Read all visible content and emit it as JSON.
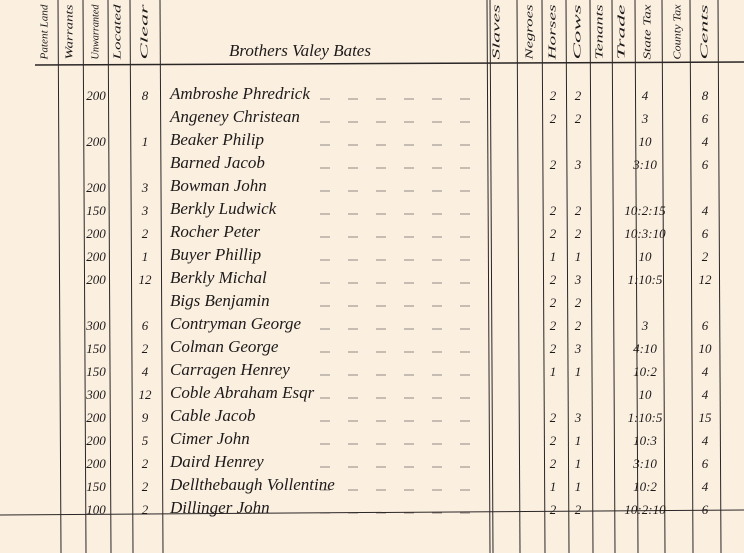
{
  "title": "Brothers Valey Bates",
  "columns": [
    "Patent Land",
    "Warrants",
    "Unwarranted",
    "Located",
    "Clear",
    "Slaves",
    "Negroes",
    "Horses",
    "Cows",
    "Tenants",
    "Trade",
    "State Tax",
    "County Tax",
    "Cents"
  ],
  "rows": [
    [
      "200",
      "8",
      "Ambroshe Phredrick",
      "2",
      "2",
      "4",
      "8"
    ],
    [
      "",
      "",
      "Angeney Christean",
      "2",
      "2",
      "3",
      "6"
    ],
    [
      "200",
      "1",
      "Beaker Philip",
      "",
      "",
      "10",
      "4"
    ],
    [
      "",
      "",
      "Barned Jacob",
      "2",
      "3",
      "3:10",
      "6"
    ],
    [
      "200",
      "3",
      "Bowman John",
      "",
      "",
      "",
      ""
    ],
    [
      "150",
      "3",
      "Berkly Ludwick",
      "2",
      "2",
      "10:2:15",
      "4"
    ],
    [
      "200",
      "2",
      "Rocher Peter",
      "2",
      "2",
      "10:3:10",
      "6"
    ],
    [
      "200",
      "1",
      "Buyer Phillip",
      "1",
      "1",
      "10",
      "2"
    ],
    [
      "200",
      "12",
      "Berkly Michal",
      "2",
      "3",
      "1:10:5",
      "12"
    ],
    [
      "",
      "",
      "Bigs Benjamin",
      "2",
      "2",
      "",
      ""
    ],
    [
      "300",
      "6",
      "Contryman George",
      "2",
      "2",
      "3",
      "6"
    ],
    [
      "150",
      "2",
      "Colman George",
      "2",
      "3",
      "4:10",
      "10"
    ],
    [
      "150",
      "4",
      "Carragen Henrey",
      "1",
      "1",
      "10:2",
      "4"
    ],
    [
      "300",
      "12",
      "Coble Abraham Esqr",
      "",
      "",
      "10",
      "4"
    ],
    [
      "200",
      "9",
      "Cable Jacob",
      "2",
      "3",
      "1:10:5",
      "15"
    ],
    [
      "200",
      "5",
      "Cimer John",
      "2",
      "1",
      "10:3",
      "4"
    ],
    [
      "200",
      "2",
      "Daird Henrey",
      "2",
      "1",
      "3:10",
      "6"
    ],
    [
      "150",
      "2",
      "Dellthebaugh Vollentine",
      "1",
      "1",
      "10:2",
      "4"
    ],
    [
      "100",
      "2",
      "Dillinger John",
      "2",
      "2",
      "10:2:10",
      "6"
    ]
  ]
}
